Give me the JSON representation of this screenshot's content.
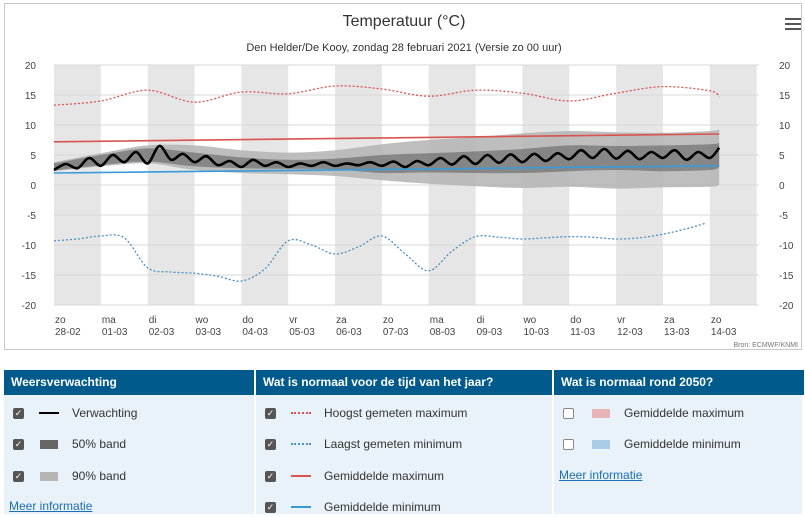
{
  "chart_data": {
    "type": "line",
    "title": "Temperatuur (°C)",
    "subtitle": "Den Helder/De Kooy, zondag 28 februari 2021 (Versie zo 00 uur)",
    "credit": "Bron: ECMWF/KNMI",
    "ylim": [
      -20,
      20
    ],
    "yticks": [
      20,
      15,
      10,
      5,
      0,
      -5,
      -10,
      -15,
      -20
    ],
    "categories": [
      {
        "day": "zo",
        "date": "28-02"
      },
      {
        "day": "ma",
        "date": "01-03"
      },
      {
        "day": "di",
        "date": "02-03"
      },
      {
        "day": "wo",
        "date": "03-03"
      },
      {
        "day": "do",
        "date": "04-03"
      },
      {
        "day": "vr",
        "date": "05-03"
      },
      {
        "day": "za",
        "date": "06-03"
      },
      {
        "day": "zo",
        "date": "07-03"
      },
      {
        "day": "ma",
        "date": "08-03"
      },
      {
        "day": "di",
        "date": "09-03"
      },
      {
        "day": "wo",
        "date": "10-03"
      },
      {
        "day": "do",
        "date": "11-03"
      },
      {
        "day": "vr",
        "date": "12-03"
      },
      {
        "day": "za",
        "date": "13-03"
      },
      {
        "day": "zo",
        "date": "14-03"
      }
    ],
    "series": [
      {
        "name": "Verwachting",
        "color": "#000000",
        "x": [
          0,
          0.25,
          0.5,
          0.75,
          1,
          1.25,
          1.5,
          1.75,
          2,
          2.25,
          2.5,
          2.75,
          3,
          3.25,
          3.5,
          3.75,
          4,
          4.25,
          4.5,
          4.75,
          5,
          5.25,
          5.5,
          5.75,
          6,
          6.25,
          6.5,
          6.75,
          7,
          7.25,
          7.5,
          7.75,
          8,
          8.25,
          8.5,
          8.75,
          9,
          9.25,
          9.5,
          9.75,
          10,
          10.25,
          10.5,
          10.75,
          11,
          11.25,
          11.5,
          11.75,
          12,
          12.25,
          12.5,
          12.75,
          13,
          13.25,
          13.5,
          13.75,
          14,
          14.2
        ],
        "values": [
          2.5,
          3.5,
          2.8,
          4.5,
          3.2,
          5.0,
          3.8,
          5.5,
          3.6,
          6.5,
          4.2,
          5.2,
          3.8,
          4.8,
          3.3,
          4.0,
          3.0,
          4.2,
          3.2,
          3.8,
          3.0,
          3.6,
          3.2,
          3.8,
          3.2,
          3.6,
          3.3,
          3.8,
          3.2,
          3.9,
          3.0,
          4.0,
          3.3,
          4.5,
          3.4,
          4.8,
          3.5,
          5.0,
          3.7,
          5.1,
          3.8,
          5.2,
          4.0,
          5.3,
          4.3,
          5.8,
          4.5,
          6.0,
          4.4,
          5.7,
          4.3,
          5.5,
          4.5,
          5.8,
          4.2,
          5.5,
          4.5,
          6.2
        ]
      },
      {
        "name": "50% band",
        "color": "#5a5a5a",
        "x": [
          0,
          1,
          2,
          3,
          4,
          5,
          6,
          7,
          8,
          9,
          10,
          11,
          12,
          13,
          14,
          14.2
        ],
        "lower": [
          2.4,
          3.3,
          3.9,
          3.1,
          2.8,
          2.7,
          2.6,
          2.0,
          2.1,
          2.0,
          2.0,
          2.3,
          2.5,
          2.3,
          2.5,
          3.0
        ],
        "upper": [
          3.6,
          5.0,
          6.1,
          5.4,
          4.6,
          4.2,
          4.4,
          5.0,
          5.3,
          5.6,
          6.0,
          6.6,
          6.5,
          6.6,
          6.8,
          7.0
        ]
      },
      {
        "name": "90% band",
        "color": "#b3b3b3",
        "x": [
          0,
          1,
          2,
          3,
          4,
          5,
          6,
          7,
          8,
          9,
          10,
          11,
          12,
          13,
          14,
          14.2
        ],
        "lower": [
          2.3,
          3.1,
          3.6,
          2.5,
          2.0,
          1.8,
          1.5,
          0.8,
          0.2,
          -0.2,
          -0.5,
          -0.3,
          -0.6,
          -0.4,
          -0.3,
          0.0
        ],
        "upper": [
          3.8,
          5.3,
          6.6,
          6.6,
          5.8,
          5.4,
          5.8,
          6.8,
          7.5,
          8.0,
          8.6,
          9.0,
          8.8,
          8.7,
          9.0,
          9.3
        ]
      },
      {
        "name": "Hoogst gemeten maximum",
        "color": "#d9534f",
        "x": [
          0,
          1,
          2,
          3,
          4,
          5,
          6,
          7,
          8,
          9,
          10,
          11,
          12,
          13,
          14,
          14.2
        ],
        "values": [
          13.3,
          14.0,
          15.8,
          13.8,
          15.5,
          15.2,
          16.5,
          16.0,
          14.8,
          15.8,
          15.3,
          14.0,
          15.3,
          16.4,
          15.7,
          14.7
        ]
      },
      {
        "name": "Laagst gemeten minimum",
        "color": "#4a90c2",
        "x": [
          0,
          0.5,
          1,
          1.5,
          2,
          2.5,
          3,
          3.5,
          4,
          4.5,
          5,
          5.5,
          6,
          6.5,
          7,
          7.5,
          8,
          8.5,
          9,
          9.5,
          10,
          10.5,
          11,
          11.5,
          12,
          12.5,
          13,
          13.5,
          13.9
        ],
        "values": [
          -9.3,
          -9.0,
          -8.5,
          -8.8,
          -13.8,
          -14.5,
          -14.7,
          -15.2,
          -16.0,
          -14.0,
          -9.3,
          -10.0,
          -11.5,
          -10.3,
          -8.5,
          -11.5,
          -14.3,
          -11.0,
          -8.6,
          -8.7,
          -9.0,
          -8.8,
          -8.6,
          -8.7,
          -9.0,
          -8.8,
          -8.2,
          -7.3,
          -6.4
        ]
      },
      {
        "name": "Gemiddelde maximum",
        "color": "#d9534f",
        "x": [
          0,
          14.2
        ],
        "values": [
          7.2,
          8.5
        ]
      },
      {
        "name": "Gemiddelde minimum",
        "color": "#3a9ad9",
        "x": [
          0,
          14.2
        ],
        "values": [
          2.0,
          3.2
        ]
      }
    ]
  },
  "menu_label": "Chart context menu",
  "legend": {
    "col1": {
      "title": "Weersverwachting",
      "items": [
        {
          "label": "Verwachting",
          "checked": true
        },
        {
          "label": "50% band",
          "checked": true
        },
        {
          "label": "90% band",
          "checked": true
        }
      ],
      "more": "Meer informatie"
    },
    "col2": {
      "title": "Wat is normaal voor de tijd van het jaar?",
      "items": [
        {
          "label": "Hoogst gemeten maximum",
          "checked": true
        },
        {
          "label": "Laagst gemeten minimum",
          "checked": true
        },
        {
          "label": "Gemiddelde maximum",
          "checked": true
        },
        {
          "label": "Gemiddelde minimum",
          "checked": true
        }
      ]
    },
    "col3": {
      "title": "Wat is normaal rond 2050?",
      "items": [
        {
          "label": "Gemiddelde maximum",
          "checked": false,
          "color": "#e8b4b8"
        },
        {
          "label": "Gemiddelde minimum",
          "checked": false,
          "color": "#a9cde8"
        }
      ],
      "more": "Meer informatie"
    }
  }
}
